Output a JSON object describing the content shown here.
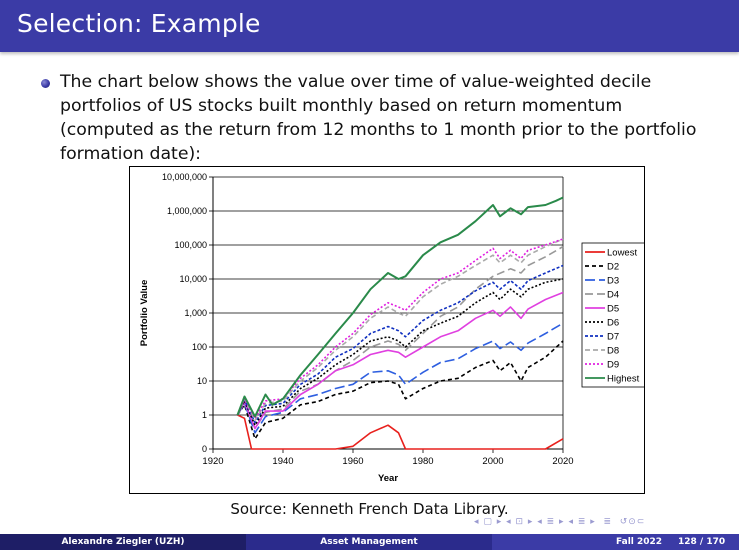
{
  "slide": {
    "title": "Selection: Example",
    "bullet": "The chart below shows the value over time of value-weighted decile portfolios of US stocks built monthly based on return momentum (computed as the return from 12 months to 1 month prior to the portfolio formation date):",
    "source": "Source: Kenneth French Data Library."
  },
  "footer": {
    "author": "Alexandre Ziegler (UZH)",
    "course": "Asset Management",
    "term": "Fall 2022",
    "page": "128 / 170"
  },
  "colors": {
    "header_bg": "#3b3ba6",
    "footer_dark": "#1e1e66",
    "footer_mid": "#2b2b8c"
  },
  "chart_data": {
    "type": "line",
    "xlabel": "Year",
    "ylabel": "Portfolio Value",
    "y_scale": "log",
    "xlim": [
      1920,
      2020
    ],
    "x_ticks": [
      "1920",
      "1940",
      "1960",
      "1980",
      "2000",
      "2020"
    ],
    "y_tick_labels": [
      "0",
      "1",
      "10",
      "100",
      "1,000",
      "10,000",
      "100,000",
      "1,000,000",
      "10,000,000"
    ],
    "grid": "horizontal",
    "legend_position": "right",
    "series": [
      {
        "name": "Lowest",
        "color": "#e8211d",
        "dash": "solid",
        "x": [
          1927,
          1929,
          1931,
          1932,
          1935,
          1940,
          1945,
          1950,
          1955,
          1960,
          1965,
          1970,
          1973,
          1975,
          1980,
          1985,
          1990,
          1995,
          2000,
          2002,
          2005,
          2008,
          2010,
          2015,
          2020
        ],
        "y": [
          1,
          0.8,
          0.05,
          0.01,
          0.03,
          0.008,
          0.05,
          0.04,
          0.08,
          0.12,
          0.3,
          0.5,
          0.3,
          0.02,
          0.03,
          0.02,
          0.03,
          0.08,
          0.1,
          0.01,
          0.03,
          0.006,
          0.02,
          0.05,
          0.2
        ]
      },
      {
        "name": "D2",
        "color": "#000000",
        "dash": "4,3",
        "x": [
          1927,
          1929,
          1932,
          1935,
          1940,
          1945,
          1950,
          1955,
          1960,
          1965,
          1970,
          1973,
          1975,
          1980,
          1985,
          1990,
          1995,
          2000,
          2002,
          2005,
          2008,
          2010,
          2015,
          2020
        ],
        "y": [
          1,
          2,
          0.2,
          0.6,
          0.8,
          2,
          2.5,
          4,
          5,
          9,
          10,
          8,
          3,
          6,
          10,
          12,
          25,
          40,
          20,
          35,
          10,
          25,
          50,
          150
        ]
      },
      {
        "name": "D3",
        "color": "#2e5fe0",
        "dash": "10,4",
        "x": [
          1927,
          1929,
          1932,
          1935,
          1940,
          1945,
          1950,
          1955,
          1960,
          1965,
          1970,
          1973,
          1975,
          1980,
          1985,
          1990,
          1995,
          2000,
          2002,
          2005,
          2008,
          2010,
          2015,
          2020
        ],
        "y": [
          1,
          2.2,
          0.3,
          0.9,
          1.2,
          3,
          4,
          6,
          8,
          18,
          20,
          15,
          8,
          18,
          35,
          45,
          90,
          150,
          90,
          140,
          80,
          130,
          250,
          500
        ]
      },
      {
        "name": "D4",
        "color": "#999999",
        "dash": "8,4",
        "x": [
          1927,
          1929,
          1932,
          1935,
          1940,
          1945,
          1950,
          1955,
          1960,
          1965,
          1970,
          1973,
          1975,
          1980,
          1985,
          1990,
          1995,
          2000,
          2005,
          2008,
          2010,
          2015,
          2020
        ],
        "y": [
          1,
          2.5,
          0.4,
          1.2,
          1.5,
          5,
          8,
          20,
          40,
          100,
          150,
          120,
          80,
          250,
          800,
          1500,
          5000,
          12000,
          20000,
          15000,
          25000,
          45000,
          90000
        ]
      },
      {
        "name": "D5",
        "color": "#e040e0",
        "dash": "solid",
        "x": [
          1927,
          1929,
          1932,
          1935,
          1940,
          1945,
          1950,
          1955,
          1960,
          1965,
          1970,
          1973,
          1975,
          1980,
          1985,
          1990,
          1995,
          2000,
          2002,
          2005,
          2008,
          2010,
          2015,
          2020
        ],
        "y": [
          1,
          2.4,
          0.4,
          1.3,
          1.3,
          4,
          8,
          20,
          30,
          60,
          80,
          70,
          50,
          100,
          200,
          300,
          700,
          1200,
          800,
          1500,
          700,
          1300,
          2500,
          4000
        ]
      },
      {
        "name": "D6",
        "color": "#000000",
        "dash": "2,2",
        "x": [
          1927,
          1929,
          1932,
          1935,
          1940,
          1945,
          1950,
          1955,
          1960,
          1965,
          1970,
          1973,
          1975,
          1980,
          1985,
          1990,
          1995,
          2000,
          2002,
          2005,
          2008,
          2010,
          2015,
          2020
        ],
        "y": [
          1,
          2.6,
          0.5,
          1.6,
          1.8,
          6,
          12,
          30,
          60,
          150,
          200,
          150,
          100,
          300,
          500,
          800,
          2000,
          4000,
          2500,
          5000,
          3000,
          5000,
          8000,
          10000
        ]
      },
      {
        "name": "D7",
        "color": "#1030c0",
        "dash": "3,2",
        "x": [
          1927,
          1929,
          1932,
          1935,
          1940,
          1945,
          1950,
          1955,
          1960,
          1965,
          1970,
          1973,
          1975,
          1980,
          1985,
          1990,
          1995,
          2000,
          2002,
          2005,
          2008,
          2010,
          2015,
          2020
        ],
        "y": [
          1,
          2.8,
          0.6,
          1.9,
          2.2,
          8,
          16,
          50,
          90,
          250,
          400,
          300,
          200,
          600,
          1200,
          2000,
          4500,
          8000,
          5000,
          9000,
          5000,
          9000,
          15000,
          25000
        ]
      },
      {
        "name": "D8",
        "color": "#aaaaaa",
        "dash": "5,3",
        "x": [
          1927,
          1929,
          1932,
          1935,
          1940,
          1945,
          1950,
          1955,
          1960,
          1965,
          1970,
          1973,
          1975,
          1980,
          1985,
          1990,
          1995,
          2000,
          2002,
          2005,
          2008,
          2010,
          2015,
          2020
        ],
        "y": [
          1,
          2.9,
          0.7,
          2.2,
          2.6,
          10,
          25,
          80,
          200,
          700,
          1500,
          1000,
          800,
          3000,
          7000,
          12000,
          25000,
          50000,
          30000,
          50000,
          30000,
          50000,
          90000,
          150000
        ]
      },
      {
        "name": "D9",
        "color": "#e020e0",
        "dash": "2,2",
        "x": [
          1927,
          1929,
          1932,
          1935,
          1940,
          1945,
          1950,
          1955,
          1960,
          1965,
          1970,
          1973,
          1975,
          1980,
          1985,
          1990,
          1995,
          2000,
          2002,
          2005,
          2008,
          2010,
          2015,
          2020
        ],
        "y": [
          1,
          3,
          0.8,
          2.6,
          3,
          12,
          30,
          100,
          250,
          900,
          2000,
          1500,
          1200,
          4000,
          10000,
          15000,
          35000,
          80000,
          40000,
          70000,
          40000,
          70000,
          100000,
          150000
        ]
      },
      {
        "name": "Highest",
        "color": "#2a8a4a",
        "dash": "solid",
        "x": [
          1927,
          1929,
          1932,
          1935,
          1937,
          1940,
          1945,
          1950,
          1955,
          1960,
          1965,
          1970,
          1973,
          1975,
          1980,
          1985,
          1990,
          1995,
          2000,
          2002,
          2005,
          2008,
          2010,
          2015,
          2018,
          2020
        ],
        "y": [
          1,
          3.5,
          0.9,
          4,
          2,
          3,
          15,
          60,
          250,
          1000,
          5000,
          15000,
          10000,
          12000,
          50000,
          120000,
          200000,
          500000,
          1500000,
          700000,
          1200000,
          800000,
          1300000,
          1500000,
          2000000,
          2500000
        ]
      }
    ]
  }
}
